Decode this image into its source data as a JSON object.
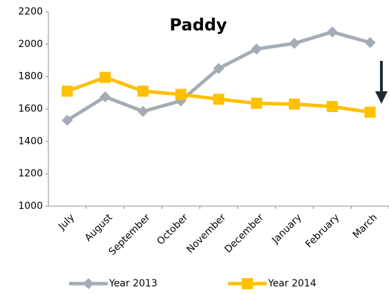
{
  "chart_data": {
    "type": "line",
    "title": "Paddy",
    "categories": [
      "July",
      "August",
      "September",
      "October",
      "November",
      "December",
      "January",
      "February",
      "March"
    ],
    "series": [
      {
        "name": "Year 2013",
        "color": "#a5acb5",
        "marker": "diamond",
        "values": [
          1530,
          1675,
          1585,
          1650,
          1850,
          1970,
          2005,
          2075,
          2010
        ]
      },
      {
        "name": "Year 2014",
        "color": "#ffc000",
        "marker": "square",
        "values": [
          1710,
          1795,
          1710,
          1690,
          1660,
          1635,
          1630,
          1615,
          1580
        ]
      }
    ],
    "ylim": [
      1000,
      2200
    ],
    "yticks": [
      1000,
      1200,
      1400,
      1600,
      1800,
      2000,
      2200
    ],
    "grid": false,
    "legend": "bottom"
  }
}
